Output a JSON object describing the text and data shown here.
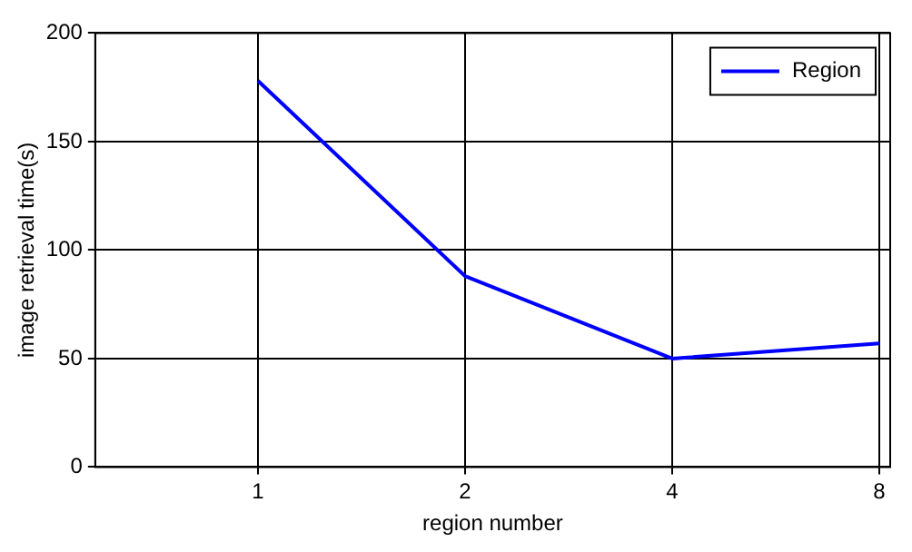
{
  "chart_data": {
    "type": "line",
    "xlabel": "region number",
    "ylabel": "image retrieval time(s)",
    "x": [
      1,
      2,
      4,
      8
    ],
    "series": [
      {
        "name": "Region",
        "color": "#0000ff",
        "values": [
          178,
          88,
          50,
          57
        ]
      }
    ],
    "log": "x",
    "xlim": [
      0.58,
      8.3
    ],
    "xticks": [
      1,
      2,
      4,
      8
    ],
    "ylim": [
      0,
      200
    ],
    "yticks": [
      0,
      50,
      100,
      150,
      200
    ],
    "grid": true,
    "legend": "top right",
    "marker": "none",
    "line_style": "solid"
  }
}
